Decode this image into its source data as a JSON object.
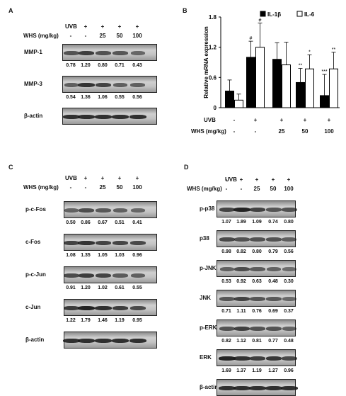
{
  "panels": {
    "A": {
      "letter": "A",
      "uvb_label": "UVB",
      "whs_label": "WHS (mg/kg)",
      "uvb_row": [
        "-",
        "+",
        "+",
        "+",
        "+"
      ],
      "whs_row": [
        "-",
        "-",
        "25",
        "50",
        "100"
      ],
      "blots": [
        {
          "label": "MMP-1",
          "values": [
            "0.78",
            "1.20",
            "0.80",
            "0.71",
            "0.43"
          ]
        },
        {
          "label": "MMP-3",
          "values": [
            "0.54",
            "1.36",
            "1.06",
            "0.55",
            "0.56"
          ]
        },
        {
          "label": "β-actin",
          "values": []
        }
      ]
    },
    "B": {
      "letter": "B",
      "uvb_label": "UVB",
      "whs_label": "WHS (mg/kg)",
      "uvb_row": [
        "-",
        "+",
        "+",
        "+",
        "+"
      ],
      "whs_row": [
        "-",
        "-",
        "25",
        "50",
        "100"
      ]
    },
    "C": {
      "letter": "C",
      "uvb_label": "UVB",
      "whs_label": "WHS (mg/kg)",
      "uvb_row": [
        "-",
        "+",
        "+",
        "+",
        "+"
      ],
      "whs_row": [
        "-",
        "-",
        "25",
        "50",
        "100"
      ],
      "blots": [
        {
          "label": "p-c-Fos",
          "values": [
            "0.50",
            "0.86",
            "0.67",
            "0.51",
            "0.41"
          ]
        },
        {
          "label": "c-Fos",
          "values": [
            "1.08",
            "1.35",
            "1.05",
            "1.03",
            "0.96"
          ]
        },
        {
          "label": "p-c-Jun",
          "values": [
            "0.91",
            "1.20",
            "1.02",
            "0.61",
            "0.55"
          ]
        },
        {
          "label": "c-Jun",
          "values": [
            "1.22",
            "1.79",
            "1.46",
            "1.19",
            "0.95"
          ]
        },
        {
          "label": "β-actin",
          "values": []
        }
      ]
    },
    "D": {
      "letter": "D",
      "uvb_label": "UVB",
      "whs_label": "WHS (mg/kg)",
      "uvb_row": [
        "-",
        "+",
        "+",
        "+",
        "+"
      ],
      "whs_row": [
        "-",
        "-",
        "25",
        "50",
        "100"
      ],
      "blots": [
        {
          "label": "p-p38",
          "values": [
            "1.07",
            "1.89",
            "1.09",
            "0.74",
            "0.80"
          ]
        },
        {
          "label": "p38",
          "values": [
            "0.98",
            "0.82",
            "0.80",
            "0.79",
            "0.56"
          ]
        },
        {
          "label": "p-JNK",
          "values": [
            "0.53",
            "0.92",
            "0.63",
            "0.48",
            "0.30"
          ]
        },
        {
          "label": "JNK",
          "values": [
            "0.71",
            "1.11",
            "0.76",
            "0.69",
            "0.37"
          ]
        },
        {
          "label": "p-ERK",
          "values": [
            "0.82",
            "1.12",
            "0.81",
            "0.77",
            "0.48"
          ]
        },
        {
          "label": "ERK",
          "values": [
            "1.69",
            "1.37",
            "1.19",
            "1.27",
            "0.96"
          ]
        },
        {
          "label": "β-actin",
          "values": []
        }
      ]
    }
  },
  "chart_data": {
    "type": "bar",
    "ylabel": "Relative mRNA expression",
    "ylim": [
      0,
      1.8
    ],
    "yticks": [
      "0",
      "0.6",
      "1.2",
      "1.8"
    ],
    "legend_position": "top",
    "series": [
      {
        "name": "IL-1β",
        "color": "#000000",
        "values": [
          0.33,
          1.0,
          0.96,
          0.5,
          0.24
        ],
        "errors": [
          0.22,
          0.32,
          0.33,
          0.28,
          0.42
        ]
      },
      {
        "name": "IL-6",
        "color": "#ffffff",
        "values": [
          0.15,
          1.2,
          0.85,
          0.77,
          0.77
        ],
        "errors": [
          0.12,
          0.48,
          0.45,
          0.28,
          0.33
        ]
      }
    ],
    "annotations": [
      {
        "group": 1,
        "series": 0,
        "text": "#"
      },
      {
        "group": 1,
        "series": 1,
        "text": "#"
      },
      {
        "group": 3,
        "series": 0,
        "text": "**"
      },
      {
        "group": 3,
        "series": 1,
        "text": "*"
      },
      {
        "group": 4,
        "series": 0,
        "text": "***"
      },
      {
        "group": 4,
        "series": 1,
        "text": "**"
      }
    ]
  }
}
